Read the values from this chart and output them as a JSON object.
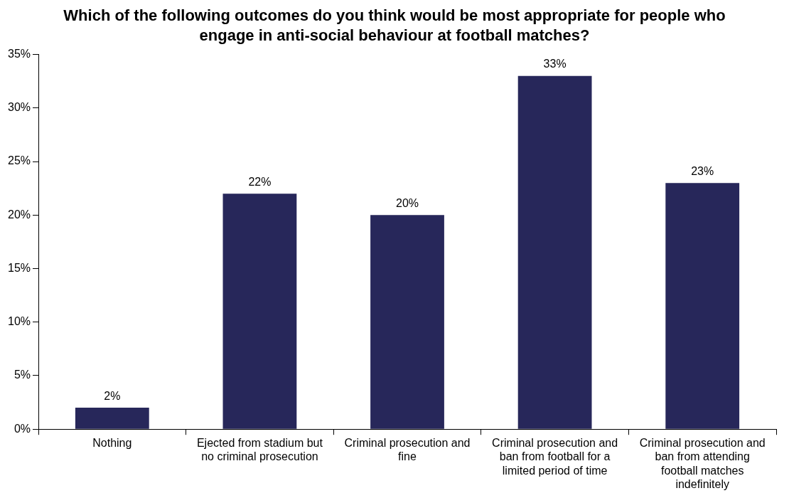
{
  "chart_data": {
    "type": "bar",
    "title": "Which of the following outcomes do you think would be most appropriate for people who engage in anti-social behaviour at football matches?",
    "categories": [
      "Nothing",
      "Ejected from stadium but no criminal prosecution",
      "Criminal prosecution and fine",
      "Criminal prosecution and ban from football for a limited period of time",
      "Criminal prosecution and ban from attending football matches indefinitely"
    ],
    "values": [
      2,
      22,
      20,
      33,
      23
    ],
    "value_labels": [
      "2%",
      "22%",
      "20%",
      "33%",
      "23%"
    ],
    "color": "#27275a",
    "ylim": [
      0,
      35
    ],
    "yticks": [
      {
        "value": 0,
        "label": "0%"
      },
      {
        "value": 5,
        "label": "5%"
      },
      {
        "value": 10,
        "label": "10%"
      },
      {
        "value": 15,
        "label": "15%"
      },
      {
        "value": 20,
        "label": "20%"
      },
      {
        "value": 25,
        "label": "25%"
      },
      {
        "value": 30,
        "label": "30%"
      },
      {
        "value": 35,
        "label": "35%"
      }
    ],
    "grid": false,
    "legend": false
  }
}
